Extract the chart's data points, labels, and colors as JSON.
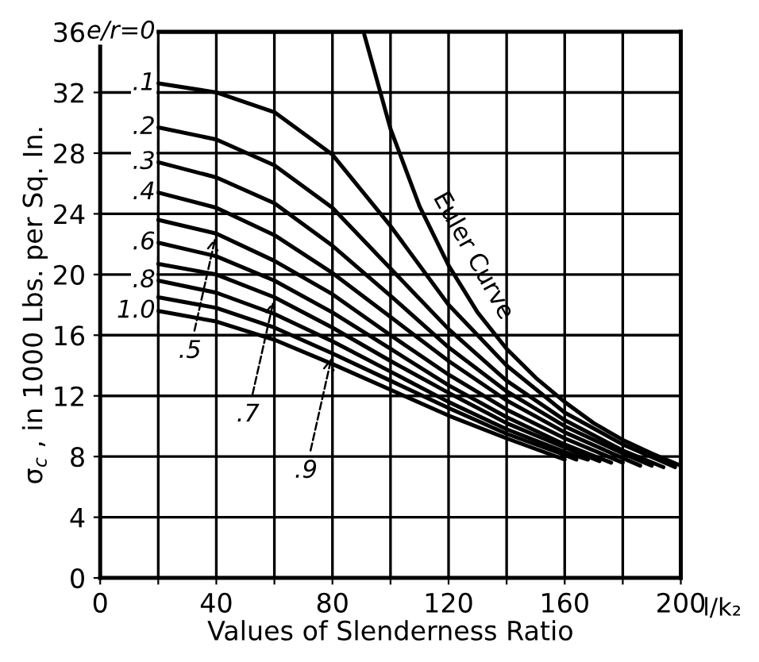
{
  "chart_data": {
    "type": "line",
    "xlabel": "Values of Slenderness Ratio",
    "ylabel": "σ$_{c}$ , in 1000 Lbs. per Sq. In.",
    "xlim": [
      0,
      200
    ],
    "ylim": [
      0,
      36
    ],
    "xticks": [
      0,
      {
        "value": 20,
        "label": null
      },
      40,
      {
        "value": 60,
        "label": null
      },
      80,
      {
        "value": 100,
        "label": null
      },
      120,
      {
        "value": 140,
        "label": null
      },
      160,
      {
        "value": 180,
        "label": null
      },
      200
    ],
    "yticks": [
      0,
      4,
      8,
      12,
      16,
      20,
      24,
      28,
      32,
      36
    ],
    "grid": true,
    "marker": "none",
    "line_style": "solid",
    "series": [
      {
        "name": "e/r=0",
        "color": "#000000",
        "x": [
          20,
          91
        ],
        "values": [
          36,
          36
        ]
      },
      {
        "name": ".1",
        "color": "#000000",
        "x": [
          20,
          40,
          60,
          80,
          100,
          120,
          140,
          160,
          180,
          198
        ],
        "values": [
          32.6,
          32.0,
          30.7,
          27.9,
          23.2,
          18.0,
          14.0,
          10.9,
          8.8,
          7.3
        ]
      },
      {
        "name": ".2",
        "color": "#000000",
        "x": [
          20,
          40,
          60,
          80,
          100,
          120,
          140,
          160,
          180,
          194
        ],
        "values": [
          29.7,
          28.9,
          27.2,
          24.4,
          20.4,
          16.4,
          13.0,
          10.4,
          8.4,
          7.3
        ]
      },
      {
        "name": ".3",
        "color": "#000000",
        "x": [
          20,
          40,
          60,
          80,
          100,
          120,
          140,
          160,
          180,
          190
        ],
        "values": [
          27.4,
          26.4,
          24.7,
          21.9,
          18.6,
          15.2,
          12.3,
          10.0,
          8.2,
          7.4
        ]
      },
      {
        "name": ".4",
        "color": "#000000",
        "x": [
          20,
          40,
          60,
          80,
          100,
          120,
          140,
          160,
          180,
          186
        ],
        "values": [
          25.4,
          24.4,
          22.6,
          20.1,
          17.2,
          14.3,
          11.7,
          9.6,
          7.9,
          7.4
        ]
      },
      {
        "color": "#000000",
        "x": [
          20,
          40,
          60,
          80,
          100,
          120,
          140,
          160,
          180
        ],
        "values": [
          23.6,
          22.7,
          20.9,
          18.7,
          16.0,
          13.4,
          11.1,
          9.2,
          7.6
        ]
      },
      {
        "name": ".6",
        "color": "#000000",
        "x": [
          20,
          40,
          60,
          80,
          100,
          120,
          140,
          160,
          176
        ],
        "values": [
          22.1,
          21.2,
          19.6,
          17.5,
          15.1,
          12.7,
          10.6,
          8.8,
          7.6
        ]
      },
      {
        "color": "#000000",
        "x": [
          20,
          40,
          60,
          80,
          100,
          120,
          140,
          160,
          172
        ],
        "values": [
          20.7,
          20.0,
          18.5,
          16.5,
          14.3,
          12.2,
          10.2,
          8.6,
          7.7
        ]
      },
      {
        "name": ".8",
        "color": "#000000",
        "x": [
          20,
          40,
          60,
          80,
          100,
          120,
          140,
          160,
          168
        ],
        "values": [
          19.6,
          18.8,
          17.4,
          15.6,
          13.6,
          11.6,
          9.8,
          8.3,
          7.8
        ]
      },
      {
        "color": "#000000",
        "x": [
          20,
          40,
          60,
          80,
          100,
          120,
          140,
          160,
          164
        ],
        "values": [
          18.5,
          17.8,
          16.5,
          14.8,
          13.0,
          11.2,
          9.5,
          8.1,
          7.8
        ]
      },
      {
        "name": "1.0",
        "color": "#000000",
        "x": [
          20,
          40,
          60,
          80,
          100,
          120,
          140,
          160
        ],
        "values": [
          17.6,
          16.9,
          15.7,
          14.1,
          12.4,
          10.7,
          9.2,
          7.8
        ]
      },
      {
        "name": "Euler Curve",
        "color": "#000000",
        "x": [
          91,
          100,
          110,
          120,
          130,
          140,
          150,
          160,
          170,
          180,
          190,
          200
        ],
        "values": [
          35.8,
          29.6,
          24.5,
          20.6,
          17.5,
          15.1,
          13.2,
          11.6,
          10.2,
          9.1,
          8.2,
          7.4
        ]
      }
    ],
    "annotations": [
      {
        "text": ".5",
        "x": 40,
        "y": 22.7
      },
      {
        "text": ".7",
        "x": 60,
        "y": 18.5
      },
      {
        "text": ".9",
        "x": 80,
        "y": 14.8
      },
      "l/k₂"
    ]
  }
}
